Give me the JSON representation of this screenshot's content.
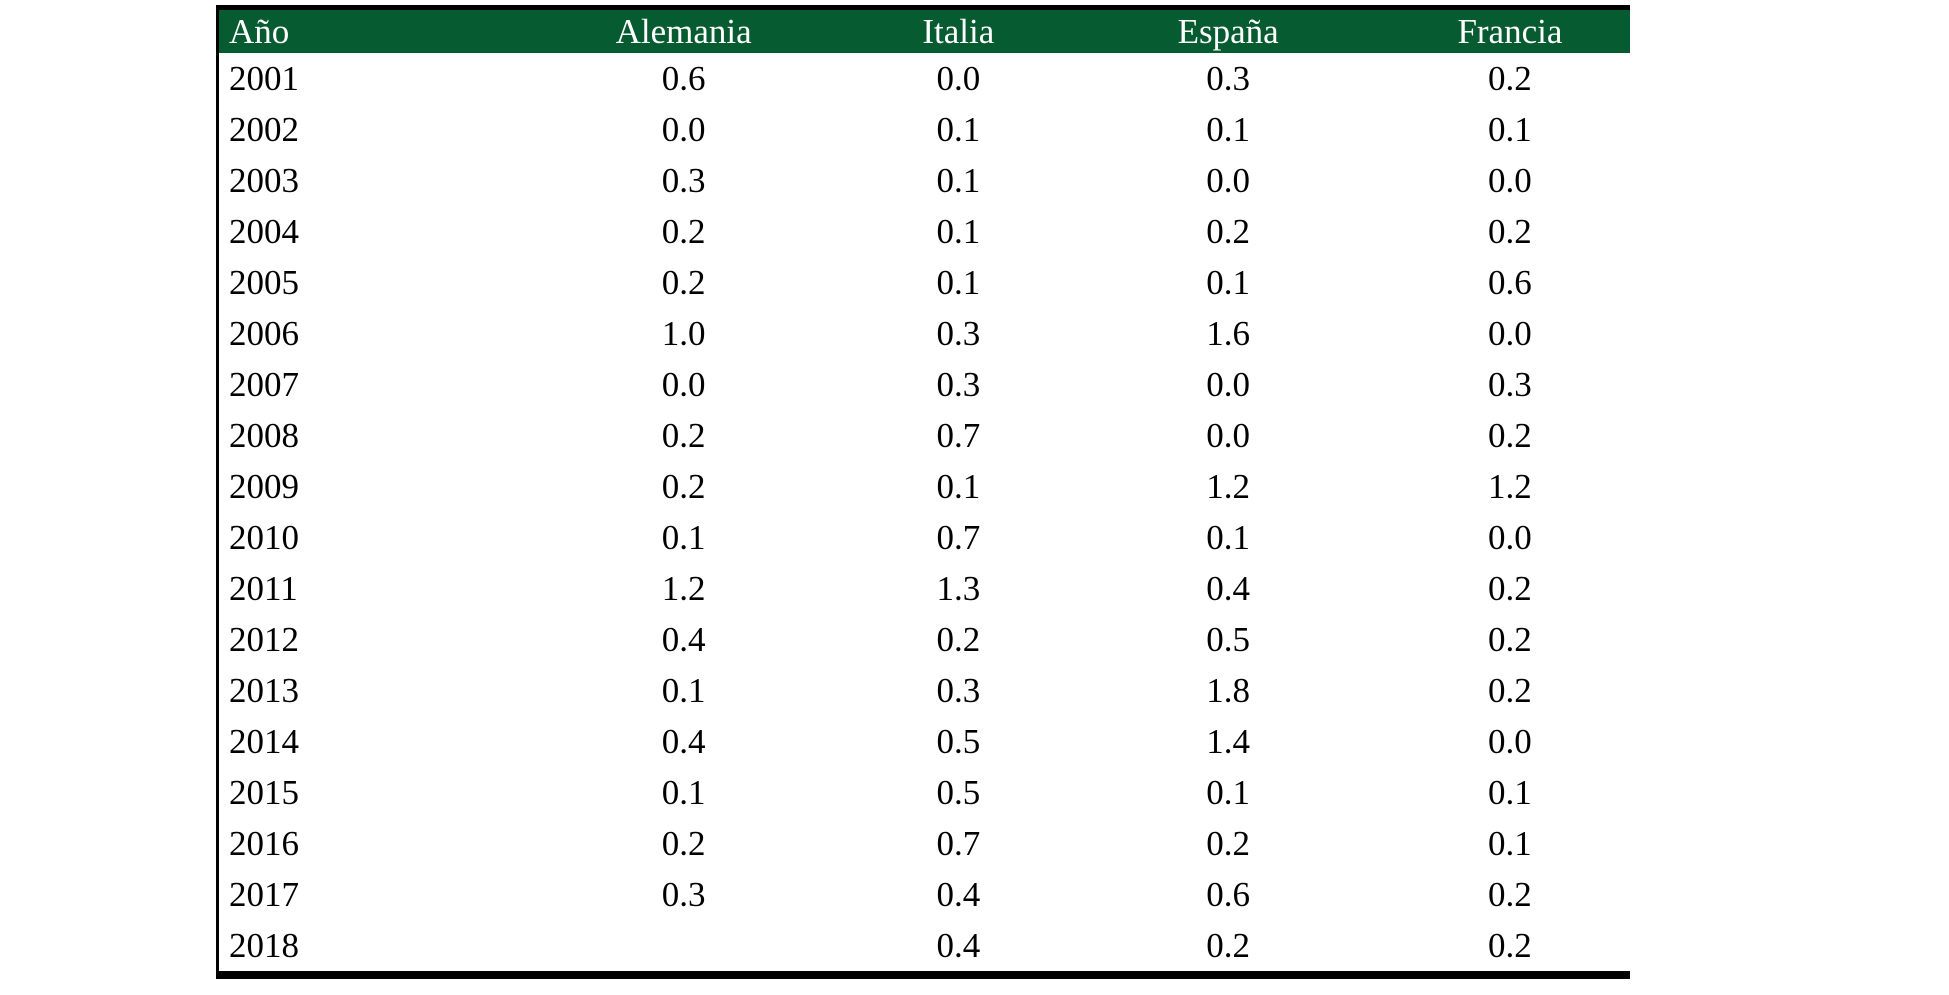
{
  "colors": {
    "header_background": "#075B31",
    "header_text": "#FFFFFF",
    "body_text": "#000000",
    "border": "#000000",
    "page_background": "#FFFFFF"
  },
  "table": {
    "headers": [
      "Año",
      "Alemania",
      "Italia",
      "España",
      "Francia"
    ],
    "rows": [
      [
        "2001",
        "0.6",
        "0.0",
        "0.3",
        "0.2"
      ],
      [
        "2002",
        "0.0",
        "0.1",
        "0.1",
        "0.1"
      ],
      [
        "2003",
        "0.3",
        "0.1",
        "0.0",
        "0.0"
      ],
      [
        "2004",
        "0.2",
        "0.1",
        "0.2",
        "0.2"
      ],
      [
        "2005",
        "0.2",
        "0.1",
        "0.1",
        "0.6"
      ],
      [
        "2006",
        "1.0",
        "0.3",
        "1.6",
        "0.0"
      ],
      [
        "2007",
        "0.0",
        "0.3",
        "0.0",
        "0.3"
      ],
      [
        "2008",
        "0.2",
        "0.7",
        "0.0",
        "0.2"
      ],
      [
        "2009",
        "0.2",
        "0.1",
        "1.2",
        "1.2"
      ],
      [
        "2010",
        "0.1",
        "0.7",
        "0.1",
        "0.0"
      ],
      [
        "2011",
        "1.2",
        "1.3",
        "0.4",
        "0.2"
      ],
      [
        "2012",
        "0.4",
        "0.2",
        "0.5",
        "0.2"
      ],
      [
        "2013",
        "0.1",
        "0.3",
        "1.8",
        "0.2"
      ],
      [
        "2014",
        "0.4",
        "0.5",
        "1.4",
        "0.0"
      ],
      [
        "2015",
        "0.1",
        "0.5",
        "0.1",
        "0.1"
      ],
      [
        "2016",
        "0.2",
        "0.7",
        "0.2",
        "0.1"
      ],
      [
        "2017",
        "0.3",
        "0.4",
        "0.6",
        "0.2"
      ],
      [
        "2018",
        "",
        "0.4",
        "0.2",
        "0.2"
      ]
    ]
  },
  "chart_data": {
    "type": "table",
    "title": "",
    "categories": [
      "2001",
      "2002",
      "2003",
      "2004",
      "2005",
      "2006",
      "2007",
      "2008",
      "2009",
      "2010",
      "2011",
      "2012",
      "2013",
      "2014",
      "2015",
      "2016",
      "2017",
      "2018"
    ],
    "series": [
      {
        "name": "Alemania",
        "values": [
          0.6,
          0.0,
          0.3,
          0.2,
          0.2,
          1.0,
          0.0,
          0.2,
          0.2,
          0.1,
          1.2,
          0.4,
          0.1,
          0.4,
          0.1,
          0.2,
          0.3,
          null
        ]
      },
      {
        "name": "Italia",
        "values": [
          0.0,
          0.1,
          0.1,
          0.1,
          0.1,
          0.3,
          0.3,
          0.7,
          0.1,
          0.7,
          1.3,
          0.2,
          0.3,
          0.5,
          0.5,
          0.7,
          0.4,
          0.4
        ]
      },
      {
        "name": "España",
        "values": [
          0.3,
          0.1,
          0.0,
          0.2,
          0.1,
          1.6,
          0.0,
          0.0,
          1.2,
          0.1,
          0.4,
          0.5,
          1.8,
          1.4,
          0.1,
          0.2,
          0.6,
          0.2
        ]
      },
      {
        "name": "Francia",
        "values": [
          0.2,
          0.1,
          0.0,
          0.2,
          0.6,
          0.0,
          0.3,
          0.2,
          1.2,
          0.0,
          0.2,
          0.2,
          0.2,
          0.0,
          0.1,
          0.1,
          0.2,
          0.2
        ]
      }
    ],
    "xlabel": "Año",
    "legend_position": "header-row",
    "grid": false
  }
}
